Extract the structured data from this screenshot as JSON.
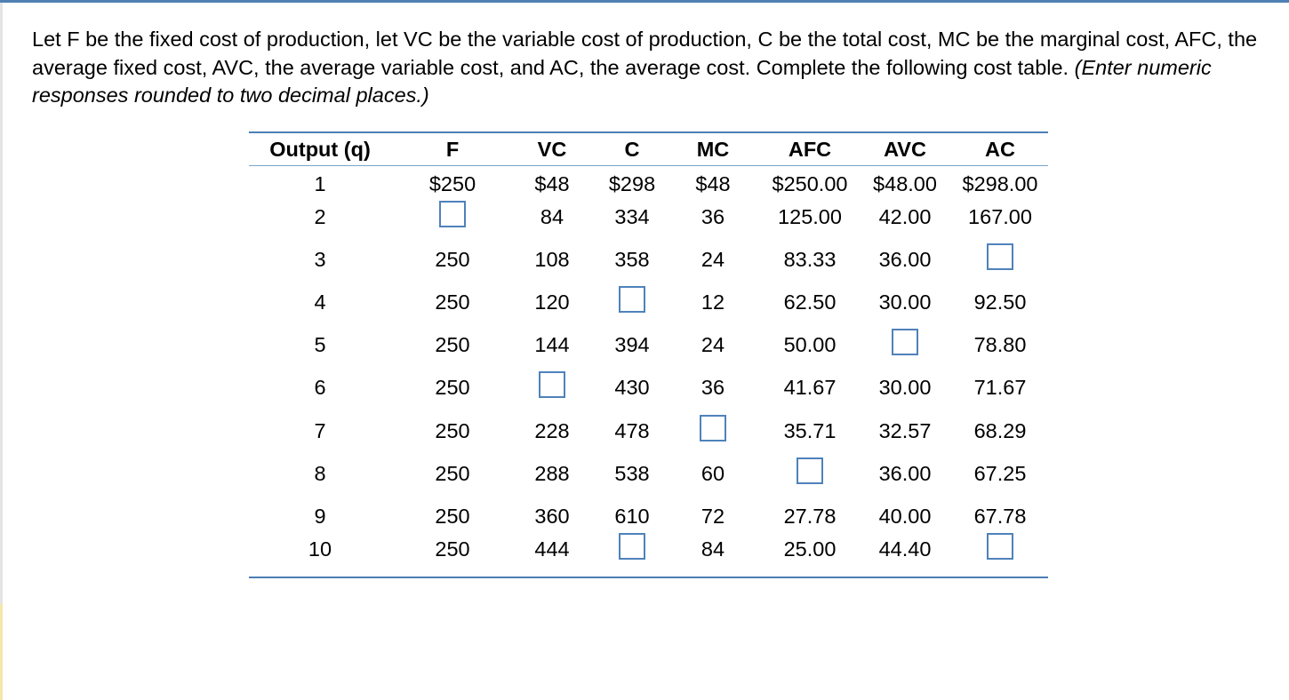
{
  "question": {
    "text_plain": "Let F be the fixed cost of production, let VC be the variable cost of production, C be the total cost, MC be the marginal cost, AFC, the average fixed cost, AVC, the average variable cost, and AC, the average cost.  Complete the following cost table. ",
    "instruction": "(Enter numeric responses rounded to two decimal places.)"
  },
  "table": {
    "headers": [
      "Output (q)",
      "F",
      "VC",
      "C",
      "MC",
      "AFC",
      "AVC",
      "AC"
    ],
    "rows": [
      [
        "1",
        "$250",
        "$48",
        "$298",
        "$48",
        "$250.00",
        "$48.00",
        "$298.00"
      ],
      [
        "2",
        "",
        "84",
        "334",
        "36",
        "125.00",
        "42.00",
        "167.00"
      ],
      [
        "3",
        "250",
        "108",
        "358",
        "24",
        "83.33",
        "36.00",
        ""
      ],
      [
        "4",
        "250",
        "120",
        "",
        "12",
        "62.50",
        "30.00",
        "92.50"
      ],
      [
        "5",
        "250",
        "144",
        "394",
        "24",
        "50.00",
        "",
        "78.80"
      ],
      [
        "6",
        "250",
        "",
        "430",
        "36",
        "41.67",
        "30.00",
        "71.67"
      ],
      [
        "7",
        "250",
        "228",
        "478",
        "",
        "35.71",
        "32.57",
        "68.29"
      ],
      [
        "8",
        "250",
        "288",
        "538",
        "60",
        "",
        "36.00",
        "67.25"
      ],
      [
        "9",
        "250",
        "360",
        "610",
        "72",
        "27.78",
        "40.00",
        "67.78"
      ],
      [
        "10",
        "250",
        "444",
        "",
        "84",
        "25.00",
        "44.40",
        ""
      ]
    ],
    "blanks": [
      {
        "row": 1,
        "col": 1
      },
      {
        "row": 2,
        "col": 7
      },
      {
        "row": 3,
        "col": 3
      },
      {
        "row": 4,
        "col": 6
      },
      {
        "row": 5,
        "col": 2
      },
      {
        "row": 6,
        "col": 4
      },
      {
        "row": 7,
        "col": 5
      },
      {
        "row": 9,
        "col": 3
      },
      {
        "row": 9,
        "col": 7
      }
    ]
  },
  "colors": {
    "accent": "#4f80b3",
    "input_border": "#4f82bb",
    "table_rule": "#4a7fb4"
  }
}
